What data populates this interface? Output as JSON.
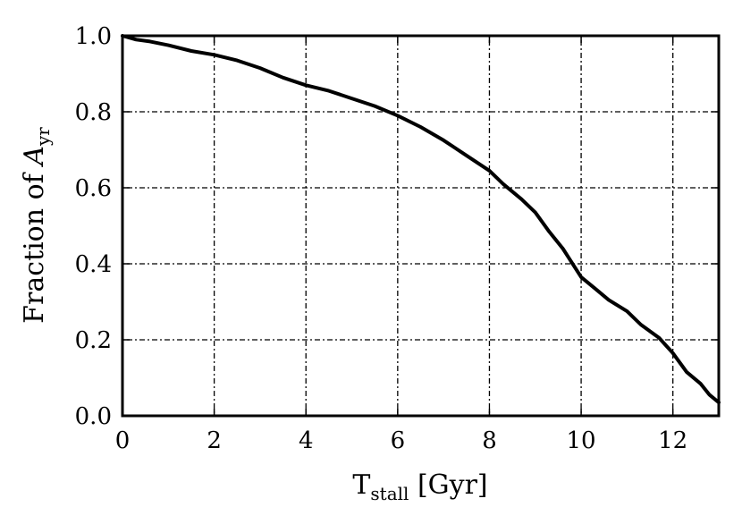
{
  "chart_data": {
    "type": "line",
    "xlabel": {
      "main": "T",
      "sub": "stall",
      "rest": " [Gyr]"
    },
    "ylabel": {
      "main": "Fraction of ",
      "italic": "A",
      "sub": "yr"
    },
    "xlim": [
      0,
      13
    ],
    "ylim": [
      0.0,
      1.0
    ],
    "xticks": [
      "0",
      "2",
      "4",
      "6",
      "8",
      "10",
      "12"
    ],
    "yticks": [
      "0.0",
      "0.2",
      "0.4",
      "0.6",
      "0.8",
      "1.0"
    ],
    "grid": true,
    "series": [
      {
        "color": "#000000",
        "x": [
          0.0,
          0.3,
          0.6,
          1.0,
          1.5,
          2.0,
          2.5,
          3.0,
          3.5,
          4.0,
          4.5,
          5.0,
          5.5,
          6.0,
          6.5,
          7.0,
          7.5,
          8.0,
          8.3,
          8.7,
          9.0,
          9.3,
          9.6,
          10.0,
          10.3,
          10.6,
          11.0,
          11.3,
          11.7,
          12.0,
          12.3,
          12.6,
          12.8,
          13.0
        ],
        "y": [
          1.0,
          0.99,
          0.985,
          0.975,
          0.96,
          0.95,
          0.935,
          0.915,
          0.89,
          0.87,
          0.855,
          0.835,
          0.815,
          0.79,
          0.76,
          0.725,
          0.685,
          0.645,
          0.61,
          0.57,
          0.535,
          0.485,
          0.44,
          0.365,
          0.335,
          0.305,
          0.275,
          0.24,
          0.205,
          0.165,
          0.115,
          0.085,
          0.055,
          0.035
        ]
      }
    ]
  }
}
